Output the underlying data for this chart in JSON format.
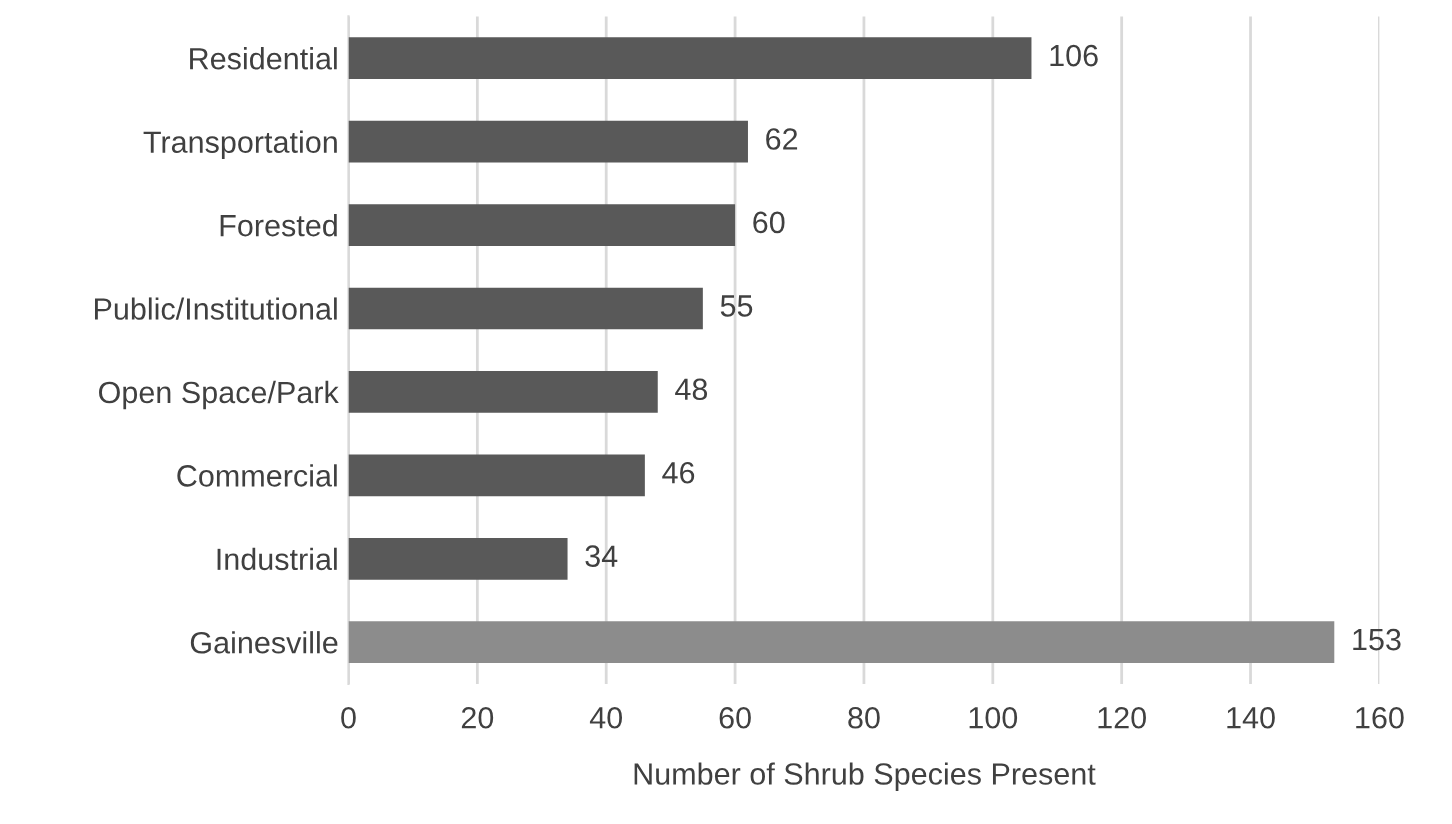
{
  "chart_data": {
    "type": "bar",
    "orientation": "horizontal",
    "xlabel": "Number of Shrub Species Present",
    "categories": [
      "Residential",
      "Transportation",
      "Forested",
      "Public/Institutional",
      "Open Space/Park",
      "Commercial",
      "Industrial",
      "Gainesville"
    ],
    "values": [
      106,
      62,
      60,
      55,
      48,
      46,
      34,
      153
    ],
    "colors": [
      "#595959",
      "#595959",
      "#595959",
      "#595959",
      "#595959",
      "#595959",
      "#595959",
      "#8c8c8c"
    ],
    "xlim": [
      0,
      160
    ],
    "xticks": [
      0,
      20,
      40,
      60,
      80,
      100,
      120,
      140,
      160
    ],
    "grid": "x",
    "data_labels": true
  }
}
